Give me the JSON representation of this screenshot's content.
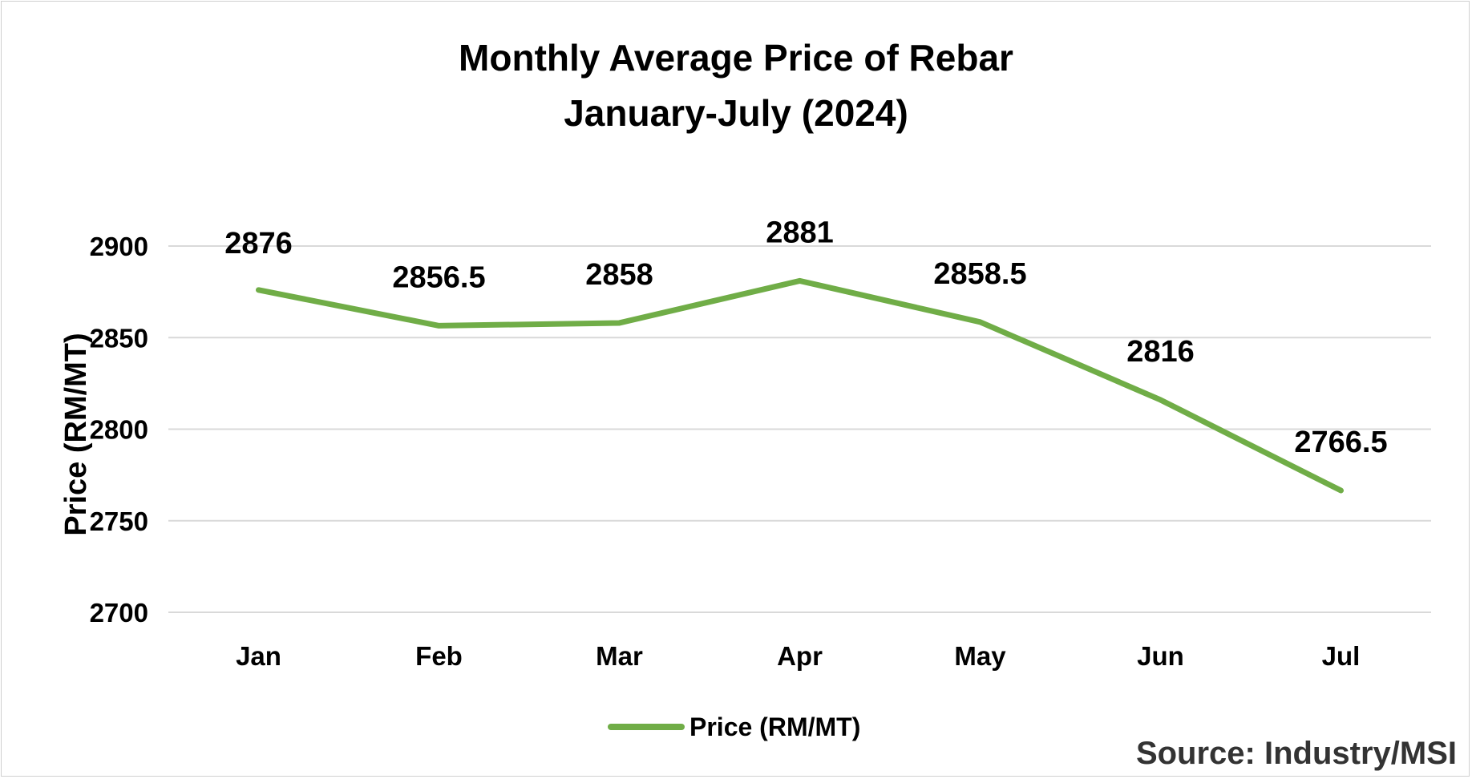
{
  "chart_data": {
    "type": "line",
    "title": "Monthly Average Price of Rebar",
    "subtitle": "January-July (2024)",
    "xlabel": "",
    "ylabel": "Price (RM/MT)",
    "categories": [
      "Jan",
      "Feb",
      "Mar",
      "Apr",
      "May",
      "Jun",
      "Jul"
    ],
    "series": [
      {
        "name": "Price (RM/MT)",
        "values": [
          2876,
          2856.5,
          2858,
          2881,
          2858.5,
          2816,
          2766.5
        ],
        "labels": [
          "2876",
          "2856.5",
          "2858",
          "2881",
          "2858.5",
          "2816",
          "2766.5"
        ],
        "color": "#70ad47"
      }
    ],
    "ylim": [
      2700,
      2900
    ],
    "yticks": [
      2700,
      2750,
      2800,
      2850,
      2900
    ],
    "grid": true,
    "legend_position": "bottom",
    "source": "Source: Industry/MSI"
  }
}
